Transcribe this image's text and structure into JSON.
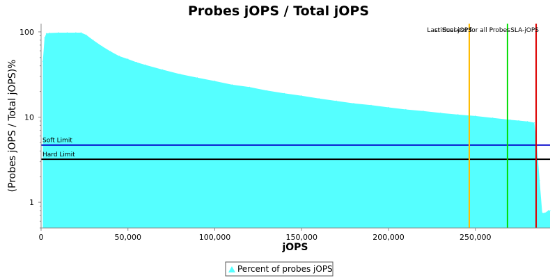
{
  "chart_data": {
    "type": "area",
    "title": "Probes jOPS / Total jOPS",
    "xlabel": "jOPS",
    "ylabel": "(Probes jOPS / Total jOPS)%",
    "y_scale": "log",
    "xlim": [
      0,
      293000
    ],
    "ylim": [
      0.5,
      125
    ],
    "x_ticks": [
      0,
      50000,
      100000,
      150000,
      200000,
      250000
    ],
    "x_tick_labels": [
      "0",
      "50,000",
      "100,000",
      "150,000",
      "200,000",
      "250,000"
    ],
    "y_ticks": [
      1,
      10,
      100
    ],
    "y_tick_labels": [
      "1",
      "10",
      "100"
    ],
    "series": [
      {
        "name": "Percent of probes jOPS",
        "color": "#55ffff",
        "x": [
          1000,
          2000,
          3000,
          5000,
          10000,
          15000,
          20000,
          23000,
          26000,
          30000,
          35000,
          40000,
          45000,
          50000,
          55000,
          60000,
          70000,
          80000,
          90000,
          100000,
          110000,
          120000,
          130000,
          140000,
          150000,
          160000,
          170000,
          180000,
          190000,
          200000,
          210000,
          220000,
          230000,
          240000,
          250000,
          260000,
          270000,
          275000,
          280000,
          284000,
          285500,
          287000,
          288500,
          290000,
          292000,
          293000
        ],
        "values": [
          45,
          85,
          96,
          97,
          98,
          98,
          98,
          98,
          92,
          80,
          68,
          59,
          52,
          48,
          44,
          41,
          36,
          32,
          29,
          26.5,
          24,
          22.5,
          20.5,
          19,
          17.8,
          16.5,
          15.5,
          14.5,
          13.8,
          13,
          12.3,
          11.8,
          11.2,
          10.7,
          10.3,
          9.8,
          9.3,
          9.1,
          8.9,
          8.6,
          4.5,
          1.8,
          0.75,
          0.75,
          0.8,
          0.8
        ]
      }
    ],
    "threshold_lines": [
      {
        "label": "Soft Limit",
        "y": 4.7,
        "color": "#0000cc"
      },
      {
        "label": "Hard Limit",
        "y": 3.2,
        "color": "#000000"
      }
    ],
    "marker_lines": [
      {
        "label": "critical-jOPS",
        "x": 246500,
        "color": "#ffbb00"
      },
      {
        "label": "Last Success for all Probes",
        "x": 268500,
        "color": "#00dd00"
      },
      {
        "label": "SLA-jOPS",
        "x": 285000,
        "color": "#dd0000"
      }
    ],
    "legend_position": "bottom",
    "grid": false
  }
}
